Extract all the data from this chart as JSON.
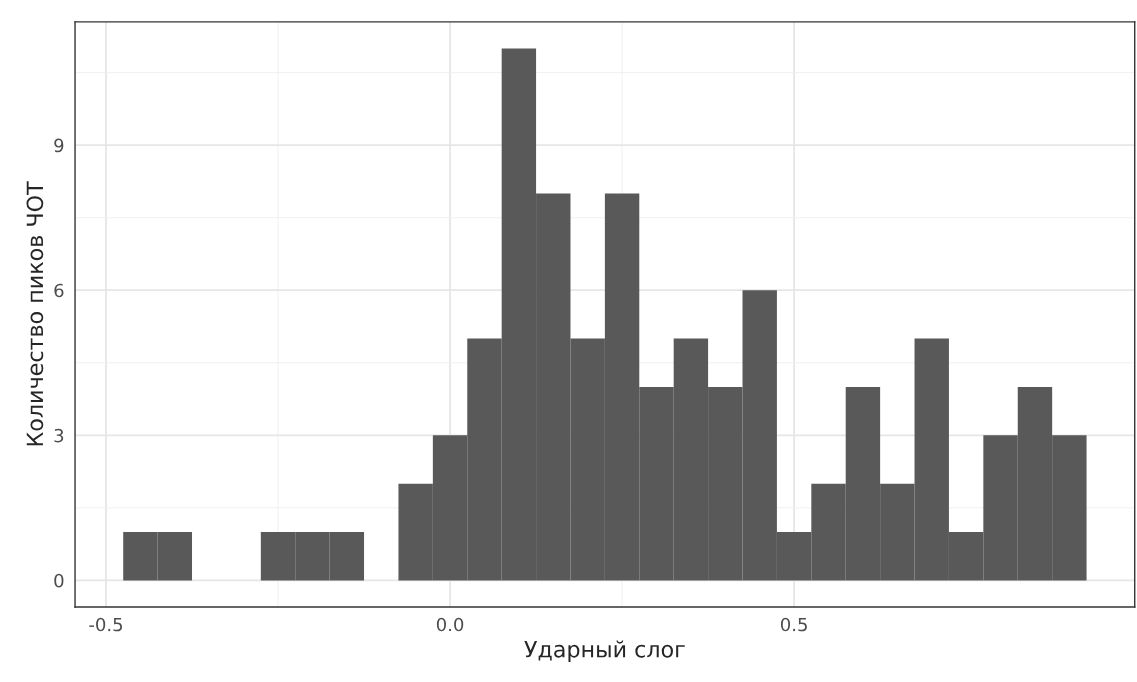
{
  "chart_data": {
    "type": "histogram",
    "xlabel": "Ударный слог",
    "ylabel": "Количество пиков ЧОТ",
    "bins": [
      -0.475,
      -0.425,
      -0.375,
      -0.325,
      -0.275,
      -0.225,
      -0.175,
      -0.125,
      -0.075,
      -0.025,
      0.025,
      0.075,
      0.125,
      0.175,
      0.225,
      0.275,
      0.325,
      0.375,
      0.425,
      0.475,
      0.525,
      0.575,
      0.625,
      0.675,
      0.725,
      0.775,
      0.825,
      0.875,
      0.925
    ],
    "values": [
      1,
      1,
      0,
      0,
      1,
      1,
      1,
      0,
      2,
      3,
      5,
      11,
      8,
      5,
      8,
      4,
      5,
      4,
      6,
      1,
      2,
      4,
      2,
      5,
      1,
      3,
      4,
      3
    ],
    "color": "#595959",
    "xlim": [
      -0.545,
      0.995
    ],
    "ylim": [
      -0.55,
      11.55
    ],
    "xticks": [
      {
        "value": -0.5,
        "label": "-0.5"
      },
      {
        "value": 0.0,
        "label": "0.0"
      },
      {
        "value": 0.5,
        "label": "0.5"
      }
    ],
    "yticks": [
      0,
      3,
      6,
      9
    ],
    "grid": true
  }
}
